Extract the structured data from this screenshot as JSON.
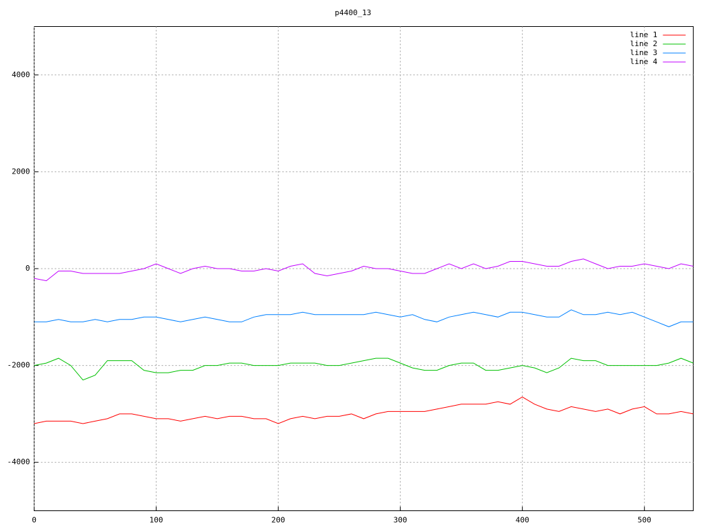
{
  "chart_data": {
    "type": "line",
    "title": "p4400_13",
    "x": [
      0,
      10,
      20,
      30,
      40,
      50,
      60,
      70,
      80,
      90,
      100,
      110,
      120,
      130,
      140,
      150,
      160,
      170,
      180,
      190,
      200,
      210,
      220,
      230,
      240,
      250,
      260,
      270,
      280,
      290,
      300,
      310,
      320,
      330,
      340,
      350,
      360,
      370,
      380,
      390,
      400,
      410,
      420,
      430,
      440,
      450,
      460,
      470,
      480,
      490,
      500,
      510,
      520,
      530,
      540
    ],
    "series": [
      {
        "name": "line 1",
        "color": "#ff0000",
        "values": [
          -3200,
          -3150,
          -3150,
          -3150,
          -3200,
          -3150,
          -3100,
          -3000,
          -3000,
          -3050,
          -3100,
          -3100,
          -3150,
          -3100,
          -3050,
          -3100,
          -3050,
          -3050,
          -3100,
          -3100,
          -3200,
          -3100,
          -3050,
          -3100,
          -3050,
          -3050,
          -3000,
          -3100,
          -3000,
          -2950,
          -2950,
          -2950,
          -2950,
          -2900,
          -2850,
          -2800,
          -2800,
          -2800,
          -2750,
          -2800,
          -2650,
          -2800,
          -2900,
          -2950,
          -2850,
          -2900,
          -2950,
          -2900,
          -3000,
          -2900,
          -2850,
          -3000,
          -3000,
          -2950,
          -3000
        ]
      },
      {
        "name": "line 2",
        "color": "#00c000",
        "values": [
          -2000,
          -1950,
          -1850,
          -2000,
          -2300,
          -2200,
          -1900,
          -1900,
          -1900,
          -2100,
          -2150,
          -2150,
          -2100,
          -2100,
          -2000,
          -2000,
          -1950,
          -1950,
          -2000,
          -2000,
          -2000,
          -1950,
          -1950,
          -1950,
          -2000,
          -2000,
          -1950,
          -1900,
          -1850,
          -1850,
          -1950,
          -2050,
          -2100,
          -2100,
          -2000,
          -1950,
          -1950,
          -2100,
          -2100,
          -2050,
          -2000,
          -2050,
          -2150,
          -2050,
          -1850,
          -1900,
          -1900,
          -2000,
          -2000,
          -2000,
          -2000,
          -2000,
          -1950,
          -1850,
          -1950
        ]
      },
      {
        "name": "line 3",
        "color": "#0080ff",
        "values": [
          -1100,
          -1100,
          -1050,
          -1100,
          -1100,
          -1050,
          -1100,
          -1050,
          -1050,
          -1000,
          -1000,
          -1050,
          -1100,
          -1050,
          -1000,
          -1050,
          -1100,
          -1100,
          -1000,
          -950,
          -950,
          -950,
          -900,
          -950,
          -950,
          -950,
          -950,
          -950,
          -900,
          -950,
          -1000,
          -950,
          -1050,
          -1100,
          -1000,
          -950,
          -900,
          -950,
          -1000,
          -900,
          -900,
          -950,
          -1000,
          -1000,
          -850,
          -950,
          -950,
          -900,
          -950,
          -900,
          -1000,
          -1100,
          -1200,
          -1100,
          -1100
        ]
      },
      {
        "name": "line 4",
        "color": "#c000ff",
        "values": [
          -200,
          -250,
          -50,
          -50,
          -100,
          -100,
          -100,
          -100,
          -50,
          0,
          100,
          0,
          -100,
          0,
          50,
          0,
          0,
          -50,
          -50,
          0,
          -50,
          50,
          100,
          -100,
          -150,
          -100,
          -50,
          50,
          0,
          0,
          -50,
          -100,
          -100,
          0,
          100,
          0,
          100,
          0,
          50,
          150,
          150,
          100,
          50,
          50,
          150,
          200,
          100,
          0,
          50,
          50,
          100,
          50,
          0,
          100,
          50
        ]
      }
    ],
    "xlim": [
      0,
      540
    ],
    "ylim": [
      -5000,
      5000
    ],
    "xticks": [
      0,
      100,
      200,
      300,
      400,
      500
    ],
    "yticks": [
      -4000,
      -2000,
      0,
      2000,
      4000
    ],
    "grid": true,
    "legend": "top-right"
  }
}
